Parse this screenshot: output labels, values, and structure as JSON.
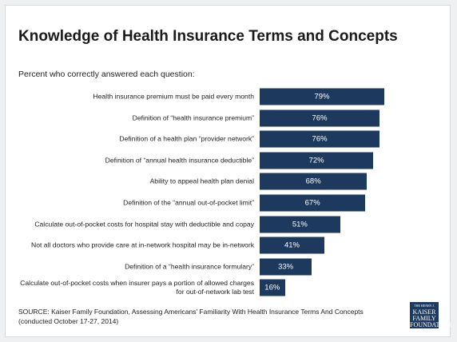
{
  "chart_data": {
    "type": "bar",
    "orientation": "horizontal",
    "title": "Knowledge of Health Insurance Terms and Concepts",
    "subtitle": "Percent who correctly answered each question:",
    "categories": [
      "Health insurance premium must be paid every month",
      "Definition of “health insurance premium”",
      "Definition of a health plan “provider network”",
      "Definition of “annual health insurance deductible”",
      "Ability to appeal health plan denial",
      "Definition of the “annual out-of-pocket limit”",
      "Calculate out-of-pocket costs for hospital stay with deductible and copay",
      "Not all doctors who provide care at in-network hospital may be in-network",
      "Definition of a “health insurance formulary”",
      "Calculate out-of-pocket costs when insurer pays a portion of allowed charges for out-of-network lab test"
    ],
    "values": [
      79,
      76,
      76,
      72,
      68,
      67,
      51,
      41,
      33,
      16
    ],
    "value_labels": [
      "79%",
      "76%",
      "76%",
      "72%",
      "68%",
      "67%",
      "51%",
      "41%",
      "33%",
      "16%"
    ],
    "color": "#1d3a5e",
    "source": "SOURCE: Kaiser Family Foundation, Assessing Americans’ Familiarity With Health Insurance Terms And Concepts (conducted October 17-27, 2014)",
    "logo": [
      "THE HENRY J.",
      "KAISER",
      "FAMILY",
      "FOUNDATION"
    ]
  }
}
